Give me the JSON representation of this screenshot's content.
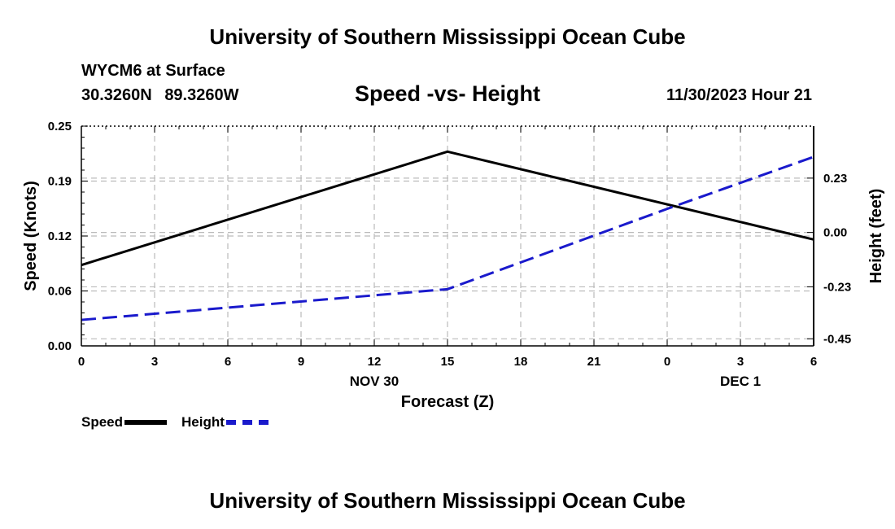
{
  "header": {
    "title": "University of Southern Mississippi Ocean Cube",
    "station": "WYCM6 at Surface",
    "lat": "30.3260N",
    "lon": "89.3260W",
    "timestamp": "11/30/2023 Hour 21"
  },
  "footer": {
    "title": "University of Southern Mississippi Ocean Cube"
  },
  "legend": {
    "speed_label": "Speed",
    "height_label": "Height"
  },
  "colors": {
    "speed": "#000000",
    "height": "#1a1acc",
    "grid": "#bbbbbb"
  },
  "chart_data": {
    "type": "line",
    "title": "Speed -vs- Height",
    "xlabel": "Forecast (Z)",
    "ylabel": "Speed (Knots)",
    "y2label": "Height (feet)",
    "x": [
      0,
      3,
      6,
      9,
      12,
      15,
      18,
      21,
      24,
      27,
      30
    ],
    "x_tick_labels": [
      "0",
      "3",
      "6",
      "9",
      "12",
      "15",
      "18",
      "21",
      "0",
      "3",
      "6"
    ],
    "date_labels": [
      {
        "x": 12,
        "label": "NOV 30"
      },
      {
        "x": 27,
        "label": "DEC 1"
      }
    ],
    "xlim": [
      0,
      30
    ],
    "ylim": [
      0,
      0.25
    ],
    "y_ticks": [
      "0.00",
      "0.06",
      "0.12",
      "0.19",
      "0.25"
    ],
    "y_tick_values": [
      0,
      0.0625,
      0.125,
      0.1875,
      0.25
    ],
    "y2lim": [
      -0.48,
      0.45
    ],
    "y2_ticks": [
      "-0.45",
      "-0.23",
      "0.00",
      "0.23"
    ],
    "y2_tick_values": [
      -0.45,
      -0.23,
      0.0,
      0.23
    ],
    "series": [
      {
        "name": "Speed",
        "axis": "left",
        "style": "solid",
        "x": [
          0,
          15,
          30
        ],
        "values": [
          0.092,
          0.221,
          0.121
        ]
      },
      {
        "name": "Height",
        "axis": "right",
        "style": "dashed",
        "x": [
          0,
          15,
          24,
          30
        ],
        "values": [
          -0.37,
          -0.24,
          0.1,
          0.32
        ]
      }
    ],
    "grid": true,
    "legend_position": "bottom-left"
  }
}
